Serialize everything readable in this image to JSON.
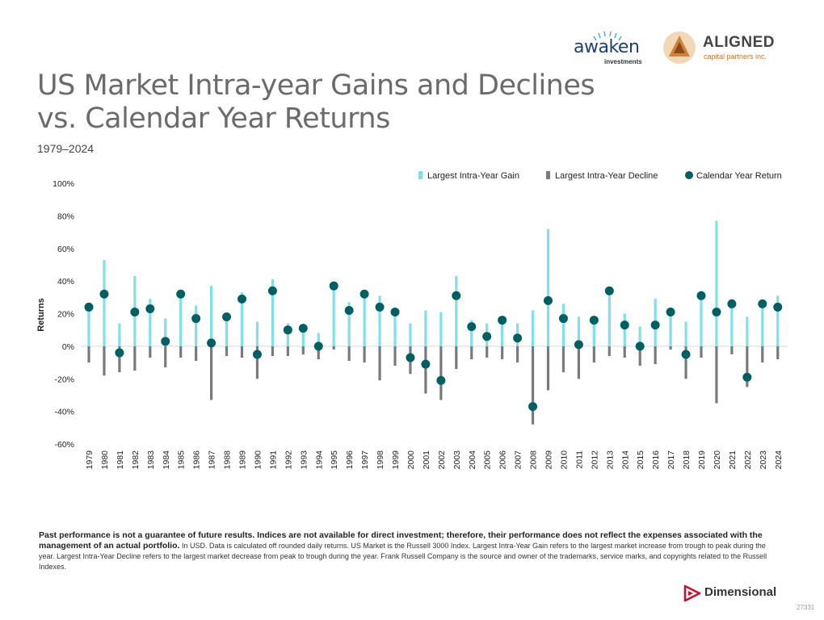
{
  "header": {
    "title_line1": "US Market Intra-year Gains and Declines",
    "title_line2": "vs. Calendar Year Returns",
    "subtitle": "1979–2024"
  },
  "logos": {
    "awaken_name": "awaken",
    "awaken_sub": "investments",
    "aligned_name": "ALIGNED",
    "aligned_sub": "capital partners inc.",
    "dimensional_name": "Dimensional"
  },
  "colors": {
    "gain": "#7ee0ea",
    "decline": "#7a7a7a",
    "calendar": "#005f63",
    "accent_red": "#c8102e"
  },
  "chart_data": {
    "type": "bar",
    "ylabel": "Returns",
    "ylim": [
      -60,
      100
    ],
    "yticks": [
      -60,
      -40,
      -20,
      0,
      20,
      40,
      60,
      80,
      100
    ],
    "ytick_labels": [
      "-60%",
      "-40%",
      "-20%",
      "0%",
      "20%",
      "40%",
      "60%",
      "80%",
      "100%"
    ],
    "legend_position": "top-right",
    "categories": [
      "1979",
      "1980",
      "1981",
      "1982",
      "1983",
      "1984",
      "1985",
      "1986",
      "1987",
      "1988",
      "1989",
      "1990",
      "1991",
      "1992",
      "1993",
      "1994",
      "1995",
      "1996",
      "1997",
      "1998",
      "1999",
      "2000",
      "2001",
      "2002",
      "2003",
      "2004",
      "2005",
      "2006",
      "2007",
      "2008",
      "2009",
      "2010",
      "2011",
      "2012",
      "2013",
      "2014",
      "2015",
      "2016",
      "2017",
      "2018",
      "2019",
      "2020",
      "2021",
      "2022",
      "2023",
      "2024"
    ],
    "series": [
      {
        "name": "Largest Intra-Year Gain",
        "values": [
          24,
          53,
          14,
          43,
          29,
          17,
          33,
          25,
          37,
          19,
          33,
          15,
          41,
          14,
          11,
          8,
          36,
          27,
          33,
          31,
          22,
          14,
          22,
          21,
          43,
          16,
          14,
          15,
          14,
          22,
          72,
          26,
          18,
          18,
          33,
          20,
          12,
          29,
          21,
          15,
          34,
          77,
          29,
          18,
          25,
          31
        ]
      },
      {
        "name": "Largest Intra-Year Decline",
        "values": [
          -10,
          -18,
          -16,
          -15,
          -7,
          -13,
          -7,
          -9,
          -33,
          -6,
          -7,
          -20,
          -6,
          -6,
          -5,
          -8,
          -2,
          -9,
          -10,
          -21,
          -12,
          -17,
          -29,
          -33,
          -14,
          -8,
          -7,
          -8,
          -10,
          -48,
          -27,
          -16,
          -20,
          -10,
          -6,
          -7,
          -12,
          -11,
          -2,
          -20,
          -7,
          -35,
          -5,
          -25,
          -10,
          -8
        ]
      },
      {
        "name": "Calendar Year Return",
        "values": [
          24,
          32,
          -4,
          21,
          23,
          3,
          32,
          17,
          2,
          18,
          29,
          -5,
          34,
          10,
          11,
          0,
          37,
          22,
          32,
          24,
          21,
          -7,
          -11,
          -21,
          31,
          12,
          6,
          16,
          5,
          -37,
          28,
          17,
          1,
          16,
          34,
          13,
          0,
          13,
          21,
          -5,
          31,
          21,
          26,
          -19,
          26,
          24
        ]
      }
    ]
  },
  "disclaimer": {
    "bold": "Past performance is not a guarantee of future results. Indices are not available for direct investment; therefore, their performance does not reflect the expenses associated with the management of an actual portfolio.",
    "text": " In USD. Data is calculated off rounded daily returns. US Market is the Russell 3000 Index. Largest Intra-Year Gain refers to the largest market increase from trough to peak during the year. Largest Intra-Year Decline refers to the largest market decrease from peak to trough during the year. Frank Russell Company is the source and owner of the trademarks, service marks, and copyrights related to the Russell Indexes."
  },
  "footer": {
    "slide_number": "27331"
  }
}
